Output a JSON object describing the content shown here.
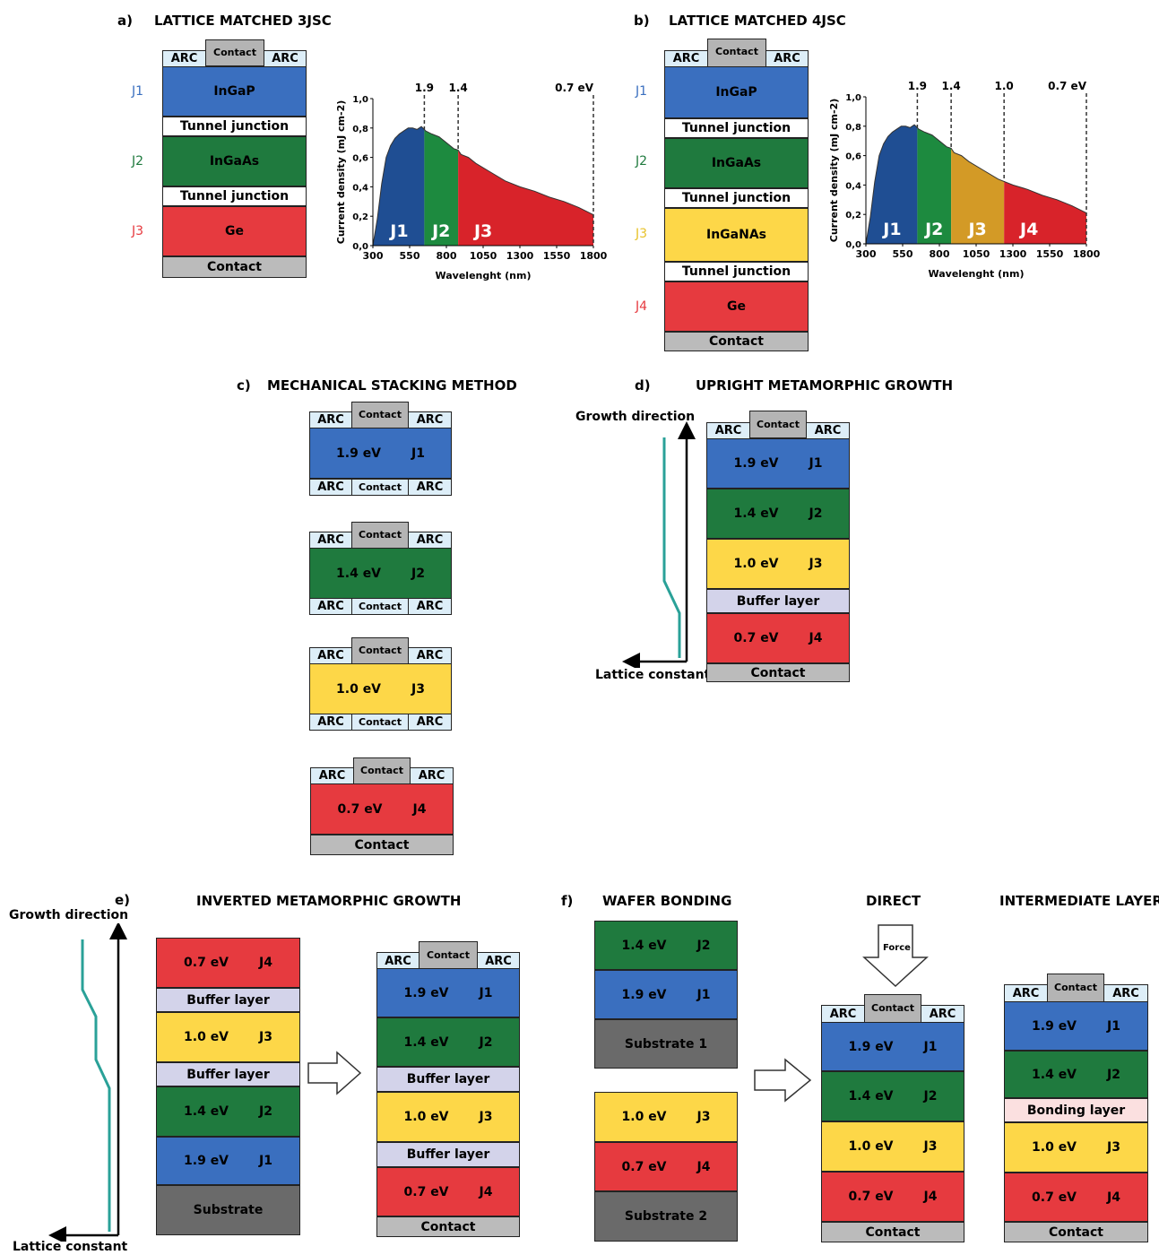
{
  "common": {
    "arc": "ARC",
    "contact": "Contact",
    "tunnel": "Tunnel junction",
    "buffer": "Buffer layer",
    "bonding": "Bonding layer",
    "substrate": "Substrate",
    "substrate1": "Substrate 1",
    "substrate2": "Substrate 2",
    "InGaP": "InGaP",
    "InGaAs": "InGaAs",
    "InGaNAs": "InGaNAs",
    "Ge": "Ge",
    "e19": "1.9 eV",
    "e14": "1.4 eV",
    "e10": "1.0 eV",
    "e07": "0.7 eV",
    "J1": "J1",
    "J2": "J2",
    "J3": "J3",
    "J4": "J4",
    "growth_direction": "Growth direction",
    "lattice_constant": "Lattice constant",
    "force": "Force"
  },
  "panels": {
    "a": {
      "label": "a)",
      "title": "LATTICE MATCHED 3JSC"
    },
    "b": {
      "label": "b)",
      "title": "LATTICE MATCHED 4JSC"
    },
    "c": {
      "label": "c)",
      "title": "MECHANICAL STACKING METHOD"
    },
    "d": {
      "label": "d)",
      "title": "UPRIGHT METAMORPHIC GROWTH"
    },
    "e": {
      "label": "e)",
      "title": "INVERTED METAMORPHIC GROWTH"
    },
    "f": {
      "label": "f)",
      "title": "WAFER BONDING",
      "direct": "DIRECT",
      "intermediate": "INTERMEDIATE LAYER"
    }
  },
  "chart_data": [
    {
      "type": "area",
      "panel": "a",
      "xlabel": "Wavelenght (nm)",
      "ylabel": "Current density (mJ cm-2)",
      "xlim": [
        300,
        1800
      ],
      "ylim": [
        0,
        1.0
      ],
      "xticks": [
        "300",
        "550",
        "800",
        "1050",
        "1300",
        "1550",
        "1800"
      ],
      "yticks": [
        "0,0",
        "0,2",
        "0,4",
        "0,6",
        "0,8",
        "1,0"
      ],
      "x": [
        300,
        330,
        360,
        390,
        420,
        450,
        480,
        510,
        540,
        570,
        600,
        630,
        660,
        700,
        750,
        800,
        850,
        880,
        900,
        950,
        1000,
        1100,
        1200,
        1300,
        1400,
        1500,
        1600,
        1700,
        1800
      ],
      "y": [
        0.0,
        0.18,
        0.42,
        0.6,
        0.68,
        0.73,
        0.76,
        0.78,
        0.8,
        0.8,
        0.79,
        0.81,
        0.78,
        0.76,
        0.74,
        0.7,
        0.66,
        0.65,
        0.62,
        0.6,
        0.56,
        0.5,
        0.44,
        0.4,
        0.37,
        0.33,
        0.3,
        0.26,
        0.21
      ],
      "bandgaps": [
        {
          "x": 650,
          "label": "1.9"
        },
        {
          "x": 880,
          "label": "1.4"
        },
        {
          "x": 1800,
          "label": "0.7 eV"
        }
      ],
      "regions": [
        {
          "name": "J1",
          "from": 300,
          "to": 650,
          "color": "#1f4e93"
        },
        {
          "name": "J2",
          "from": 650,
          "to": 880,
          "color": "#1d8a3f"
        },
        {
          "name": "J3",
          "from": 880,
          "to": 1800,
          "color": "#d8232a"
        }
      ]
    },
    {
      "type": "area",
      "panel": "b",
      "xlabel": "Wavelenght (nm)",
      "ylabel": "Current density (mJ cm-2)",
      "xlim": [
        300,
        1800
      ],
      "ylim": [
        0,
        1.0
      ],
      "xticks": [
        "300",
        "550",
        "800",
        "1050",
        "1300",
        "1550",
        "1800"
      ],
      "yticks": [
        "0,0",
        "0,2",
        "0,4",
        "0,6",
        "0,8",
        "1,0"
      ],
      "x": [
        300,
        330,
        360,
        390,
        420,
        450,
        480,
        510,
        540,
        570,
        600,
        630,
        660,
        700,
        750,
        800,
        850,
        880,
        900,
        950,
        1000,
        1100,
        1200,
        1300,
        1400,
        1500,
        1600,
        1700,
        1800
      ],
      "y": [
        0.0,
        0.18,
        0.42,
        0.6,
        0.68,
        0.73,
        0.76,
        0.78,
        0.8,
        0.8,
        0.79,
        0.81,
        0.78,
        0.76,
        0.74,
        0.7,
        0.66,
        0.65,
        0.62,
        0.6,
        0.56,
        0.5,
        0.44,
        0.4,
        0.37,
        0.33,
        0.3,
        0.26,
        0.21
      ],
      "bandgaps": [
        {
          "x": 650,
          "label": "1.9"
        },
        {
          "x": 880,
          "label": "1.4"
        },
        {
          "x": 1240,
          "label": "1.0"
        },
        {
          "x": 1800,
          "label": "0.7 eV"
        }
      ],
      "regions": [
        {
          "name": "J1",
          "from": 300,
          "to": 650,
          "color": "#1f4e93"
        },
        {
          "name": "J2",
          "from": 650,
          "to": 880,
          "color": "#1d8a3f"
        },
        {
          "name": "J3",
          "from": 880,
          "to": 1240,
          "color": "#d39a26"
        },
        {
          "name": "J4",
          "from": 1240,
          "to": 1800,
          "color": "#d8232a"
        }
      ]
    }
  ]
}
